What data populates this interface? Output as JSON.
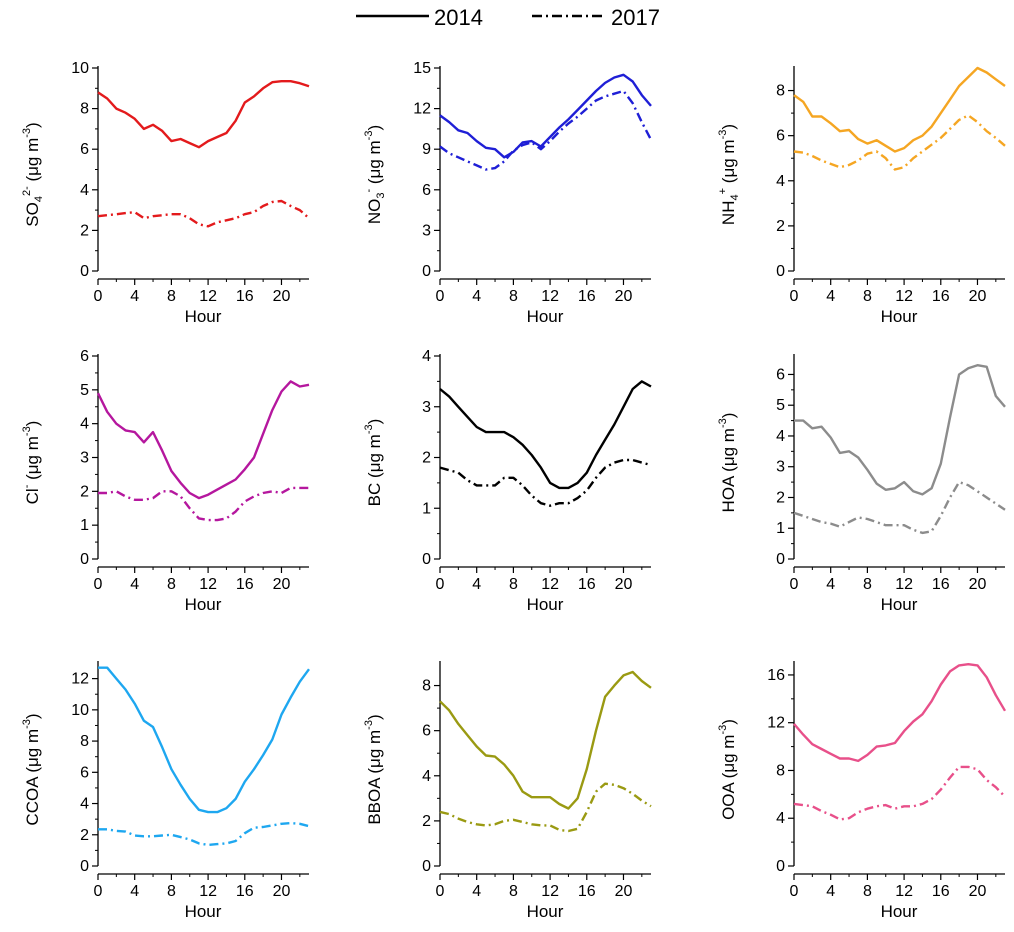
{
  "legend": [
    {
      "label": "2014",
      "style": "solid"
    },
    {
      "label": "2017",
      "style": "dashdot"
    }
  ],
  "chart_data": [
    {
      "type": "line",
      "ylabel": "SO",
      "ylabel_sub": "4",
      "ylabel_sup": "2-",
      "ylabel_unit": " (μg m",
      "ylabel_unit_sup": "-3",
      "ylabel_close": ")",
      "xlabel": "Hour",
      "color": "#e31a1c",
      "ylim": [
        0,
        10
      ],
      "yticks": [
        0,
        2,
        4,
        6,
        8,
        10
      ],
      "xlim": [
        0,
        23
      ],
      "xticks": [
        0,
        4,
        8,
        12,
        16,
        20
      ],
      "x": [
        0,
        1,
        2,
        3,
        4,
        5,
        6,
        7,
        8,
        9,
        10,
        11,
        12,
        13,
        14,
        15,
        16,
        17,
        18,
        19,
        20,
        21,
        22,
        23
      ],
      "series": [
        {
          "name": "2014",
          "values": [
            8.8,
            8.5,
            8.0,
            7.8,
            7.5,
            7.0,
            7.2,
            6.9,
            6.4,
            6.5,
            6.3,
            6.1,
            6.4,
            6.6,
            6.8,
            7.4,
            8.3,
            8.6,
            9.0,
            9.3,
            9.35,
            9.35,
            9.25,
            9.1
          ]
        },
        {
          "name": "2017",
          "values": [
            2.7,
            2.75,
            2.8,
            2.85,
            2.9,
            2.6,
            2.7,
            2.75,
            2.8,
            2.8,
            2.6,
            2.3,
            2.2,
            2.4,
            2.5,
            2.6,
            2.8,
            2.9,
            3.2,
            3.4,
            3.45,
            3.2,
            3.0,
            2.6
          ]
        }
      ]
    },
    {
      "type": "line",
      "ylabel": "NO",
      "ylabel_sub": "3",
      "ylabel_sup": "-",
      "ylabel_unit": " (μg m",
      "ylabel_unit_sup": "-3",
      "ylabel_close": ")",
      "xlabel": "Hour",
      "color": "#1f1fd6",
      "ylim": [
        0,
        15
      ],
      "yticks": [
        0,
        3,
        6,
        9,
        12,
        15
      ],
      "xlim": [
        0,
        23
      ],
      "xticks": [
        0,
        4,
        8,
        12,
        16,
        20
      ],
      "x": [
        0,
        1,
        2,
        3,
        4,
        5,
        6,
        7,
        8,
        9,
        10,
        11,
        12,
        13,
        14,
        15,
        16,
        17,
        18,
        19,
        20,
        21,
        22,
        23
      ],
      "series": [
        {
          "name": "2014",
          "values": [
            11.5,
            11.0,
            10.4,
            10.2,
            9.6,
            9.1,
            9.0,
            8.4,
            8.8,
            9.5,
            9.6,
            9.2,
            9.9,
            10.6,
            11.2,
            11.9,
            12.6,
            13.3,
            13.9,
            14.3,
            14.5,
            14.0,
            13.0,
            12.2
          ]
        },
        {
          "name": "2017",
          "values": [
            9.2,
            8.7,
            8.4,
            8.1,
            7.8,
            7.5,
            7.6,
            8.1,
            8.9,
            9.3,
            9.5,
            9.0,
            9.6,
            10.3,
            10.9,
            11.4,
            12.0,
            12.6,
            12.9,
            13.1,
            13.3,
            12.4,
            11.0,
            9.7
          ]
        }
      ]
    },
    {
      "type": "line",
      "ylabel": "NH",
      "ylabel_sub": "4",
      "ylabel_sup": "+",
      "ylabel_unit": " (μg m",
      "ylabel_unit_sup": "-3",
      "ylabel_close": ")",
      "xlabel": "Hour",
      "color": "#f5a623",
      "ylim": [
        0,
        9
      ],
      "yticks": [
        0,
        2,
        4,
        6,
        8
      ],
      "xlim": [
        0,
        23
      ],
      "xticks": [
        0,
        4,
        8,
        12,
        16,
        20
      ],
      "x": [
        0,
        1,
        2,
        3,
        4,
        5,
        6,
        7,
        8,
        9,
        10,
        11,
        12,
        13,
        14,
        15,
        16,
        17,
        18,
        19,
        20,
        21,
        22,
        23
      ],
      "series": [
        {
          "name": "2014",
          "values": [
            7.8,
            7.5,
            6.85,
            6.85,
            6.55,
            6.2,
            6.25,
            5.85,
            5.65,
            5.8,
            5.55,
            5.3,
            5.45,
            5.8,
            6.0,
            6.4,
            7.0,
            7.6,
            8.2,
            8.6,
            9.0,
            8.8,
            8.5,
            8.2
          ]
        },
        {
          "name": "2017",
          "values": [
            5.3,
            5.25,
            5.1,
            4.9,
            4.75,
            4.6,
            4.7,
            4.9,
            5.2,
            5.3,
            5.0,
            4.5,
            4.6,
            5.0,
            5.3,
            5.6,
            5.9,
            6.3,
            6.7,
            6.9,
            6.6,
            6.2,
            5.9,
            5.55
          ]
        }
      ]
    },
    {
      "type": "line",
      "ylabel": "Cl",
      "ylabel_sub": "",
      "ylabel_sup": "-",
      "ylabel_unit": " (μg m",
      "ylabel_unit_sup": "-3",
      "ylabel_close": ")",
      "xlabel": "Hour",
      "color": "#b5179e",
      "ylim": [
        0,
        6
      ],
      "yticks": [
        0,
        1,
        2,
        3,
        4,
        5,
        6
      ],
      "xlim": [
        0,
        23
      ],
      "xticks": [
        0,
        4,
        8,
        12,
        16,
        20
      ],
      "x": [
        0,
        1,
        2,
        3,
        4,
        5,
        6,
        7,
        8,
        9,
        10,
        11,
        12,
        13,
        14,
        15,
        16,
        17,
        18,
        19,
        20,
        21,
        22,
        23
      ],
      "series": [
        {
          "name": "2014",
          "values": [
            4.9,
            4.35,
            4.0,
            3.8,
            3.75,
            3.45,
            3.75,
            3.2,
            2.6,
            2.25,
            1.95,
            1.8,
            1.9,
            2.05,
            2.2,
            2.35,
            2.65,
            3.0,
            3.7,
            4.4,
            4.95,
            5.25,
            5.1,
            5.15
          ]
        },
        {
          "name": "2017",
          "values": [
            1.95,
            1.95,
            2.0,
            1.85,
            1.75,
            1.75,
            1.8,
            2.0,
            2.0,
            1.85,
            1.5,
            1.2,
            1.15,
            1.15,
            1.2,
            1.4,
            1.7,
            1.85,
            1.95,
            2.0,
            1.95,
            2.1,
            2.1,
            2.1
          ]
        }
      ]
    },
    {
      "type": "line",
      "ylabel": "BC",
      "ylabel_sub": "",
      "ylabel_sup": "",
      "ylabel_unit": " (μg m",
      "ylabel_unit_sup": "-3",
      "ylabel_close": ")",
      "xlabel": "Hour",
      "color": "#000000",
      "ylim": [
        0,
        4
      ],
      "yticks": [
        0,
        1,
        2,
        3,
        4
      ],
      "xlim": [
        0,
        23
      ],
      "xticks": [
        0,
        4,
        8,
        12,
        16,
        20
      ],
      "x": [
        0,
        1,
        2,
        3,
        4,
        5,
        6,
        7,
        8,
        9,
        10,
        11,
        12,
        13,
        14,
        15,
        16,
        17,
        18,
        19,
        20,
        21,
        22,
        23
      ],
      "series": [
        {
          "name": "2014",
          "values": [
            3.35,
            3.2,
            3.0,
            2.8,
            2.6,
            2.5,
            2.5,
            2.5,
            2.4,
            2.25,
            2.05,
            1.8,
            1.5,
            1.4,
            1.4,
            1.5,
            1.7,
            2.05,
            2.35,
            2.65,
            3.0,
            3.35,
            3.5,
            3.4
          ]
        },
        {
          "name": "2017",
          "values": [
            1.8,
            1.75,
            1.7,
            1.55,
            1.45,
            1.45,
            1.45,
            1.6,
            1.6,
            1.45,
            1.25,
            1.1,
            1.05,
            1.1,
            1.1,
            1.2,
            1.35,
            1.6,
            1.8,
            1.9,
            1.95,
            1.95,
            1.9,
            1.85
          ]
        }
      ]
    },
    {
      "type": "line",
      "ylabel": "HOA",
      "ylabel_sub": "",
      "ylabel_sup": "",
      "ylabel_unit": " (μg m",
      "ylabel_unit_sup": "-3",
      "ylabel_close": ")",
      "xlabel": "Hour",
      "color": "#8c8c8c",
      "ylim": [
        0,
        6.6
      ],
      "yticks": [
        0,
        1,
        2,
        3,
        4,
        5,
        6
      ],
      "xlim": [
        0,
        23
      ],
      "xticks": [
        0,
        4,
        8,
        12,
        16,
        20
      ],
      "x": [
        0,
        1,
        2,
        3,
        4,
        5,
        6,
        7,
        8,
        9,
        10,
        11,
        12,
        13,
        14,
        15,
        16,
        17,
        18,
        19,
        20,
        21,
        22,
        23
      ],
      "series": [
        {
          "name": "2014",
          "values": [
            4.5,
            4.5,
            4.25,
            4.3,
            3.95,
            3.45,
            3.5,
            3.3,
            2.9,
            2.45,
            2.25,
            2.3,
            2.5,
            2.2,
            2.1,
            2.3,
            3.1,
            4.6,
            6.0,
            6.2,
            6.3,
            6.25,
            5.3,
            4.95
          ]
        },
        {
          "name": "2017",
          "values": [
            1.5,
            1.4,
            1.3,
            1.2,
            1.15,
            1.05,
            1.2,
            1.35,
            1.3,
            1.2,
            1.1,
            1.1,
            1.1,
            0.95,
            0.85,
            0.9,
            1.4,
            2.0,
            2.5,
            2.4,
            2.2,
            2.0,
            1.8,
            1.6
          ]
        }
      ]
    },
    {
      "type": "line",
      "ylabel": "CCOA",
      "ylabel_sub": "",
      "ylabel_sup": "",
      "ylabel_unit": " (μg m",
      "ylabel_unit_sup": "-3",
      "ylabel_close": ")",
      "xlabel": "Hour",
      "color": "#1ea7f0",
      "ylim": [
        0,
        13
      ],
      "yticks": [
        0,
        2,
        4,
        6,
        8,
        10,
        12
      ],
      "xlim": [
        0,
        23
      ],
      "xticks": [
        0,
        4,
        8,
        12,
        16,
        20
      ],
      "x": [
        0,
        1,
        2,
        3,
        4,
        5,
        6,
        7,
        8,
        9,
        10,
        11,
        12,
        13,
        14,
        15,
        16,
        17,
        18,
        19,
        20,
        21,
        22,
        23
      ],
      "series": [
        {
          "name": "2014",
          "values": [
            12.7,
            12.7,
            12.0,
            11.3,
            10.4,
            9.3,
            8.9,
            7.6,
            6.2,
            5.2,
            4.3,
            3.6,
            3.45,
            3.45,
            3.7,
            4.3,
            5.4,
            6.2,
            7.1,
            8.1,
            9.7,
            10.8,
            11.8,
            12.6
          ]
        },
        {
          "name": "2017",
          "values": [
            2.35,
            2.35,
            2.25,
            2.2,
            1.95,
            1.9,
            1.9,
            1.95,
            2.0,
            1.85,
            1.7,
            1.45,
            1.35,
            1.4,
            1.45,
            1.6,
            2.1,
            2.45,
            2.5,
            2.6,
            2.7,
            2.75,
            2.7,
            2.55
          ]
        }
      ]
    },
    {
      "type": "line",
      "ylabel": "BBOA",
      "ylabel_sub": "",
      "ylabel_sup": "",
      "ylabel_unit": " (μg m",
      "ylabel_unit_sup": "-3",
      "ylabel_close": ")",
      "xlabel": "Hour",
      "color": "#9a9a12",
      "ylim": [
        0,
        9
      ],
      "yticks": [
        0,
        2,
        4,
        6,
        8
      ],
      "xlim": [
        0,
        23
      ],
      "xticks": [
        0,
        4,
        8,
        12,
        16,
        20
      ],
      "x": [
        0,
        1,
        2,
        3,
        4,
        5,
        6,
        7,
        8,
        9,
        10,
        11,
        12,
        13,
        14,
        15,
        16,
        17,
        18,
        19,
        20,
        21,
        22,
        23
      ],
      "series": [
        {
          "name": "2014",
          "values": [
            7.3,
            6.9,
            6.3,
            5.8,
            5.3,
            4.9,
            4.85,
            4.5,
            4.0,
            3.3,
            3.05,
            3.05,
            3.05,
            2.75,
            2.55,
            3.0,
            4.3,
            6.0,
            7.5,
            8.0,
            8.45,
            8.6,
            8.2,
            7.9
          ]
        },
        {
          "name": "2017",
          "values": [
            2.4,
            2.3,
            2.1,
            1.95,
            1.85,
            1.8,
            1.85,
            2.0,
            2.05,
            1.95,
            1.85,
            1.8,
            1.8,
            1.6,
            1.55,
            1.65,
            2.4,
            3.3,
            3.65,
            3.6,
            3.45,
            3.2,
            2.9,
            2.65
          ]
        }
      ]
    },
    {
      "type": "line",
      "ylabel": "OOA",
      "ylabel_sub": "",
      "ylabel_sup": "",
      "ylabel_unit": " (μg m",
      "ylabel_unit_sup": "-3",
      "ylabel_close": ")",
      "xlabel": "Hour",
      "color": "#e8508a",
      "ylim": [
        0,
        17
      ],
      "yticks": [
        0,
        4,
        8,
        12,
        16
      ],
      "xlim": [
        0,
        23
      ],
      "xticks": [
        0,
        4,
        8,
        12,
        16,
        20
      ],
      "x": [
        0,
        1,
        2,
        3,
        4,
        5,
        6,
        7,
        8,
        9,
        10,
        11,
        12,
        13,
        14,
        15,
        16,
        17,
        18,
        19,
        20,
        21,
        22,
        23
      ],
      "series": [
        {
          "name": "2014",
          "values": [
            11.9,
            11.0,
            10.2,
            9.8,
            9.4,
            9.0,
            9.0,
            8.8,
            9.3,
            10.0,
            10.1,
            10.3,
            11.3,
            12.1,
            12.7,
            13.8,
            15.2,
            16.3,
            16.8,
            16.9,
            16.8,
            15.8,
            14.3,
            13.0
          ]
        },
        {
          "name": "2017",
          "values": [
            5.2,
            5.1,
            5.0,
            4.6,
            4.3,
            3.9,
            4.0,
            4.5,
            4.8,
            5.0,
            5.1,
            4.8,
            5.0,
            5.0,
            5.2,
            5.6,
            6.4,
            7.4,
            8.3,
            8.3,
            8.1,
            7.2,
            6.6,
            5.8
          ]
        }
      ]
    }
  ]
}
